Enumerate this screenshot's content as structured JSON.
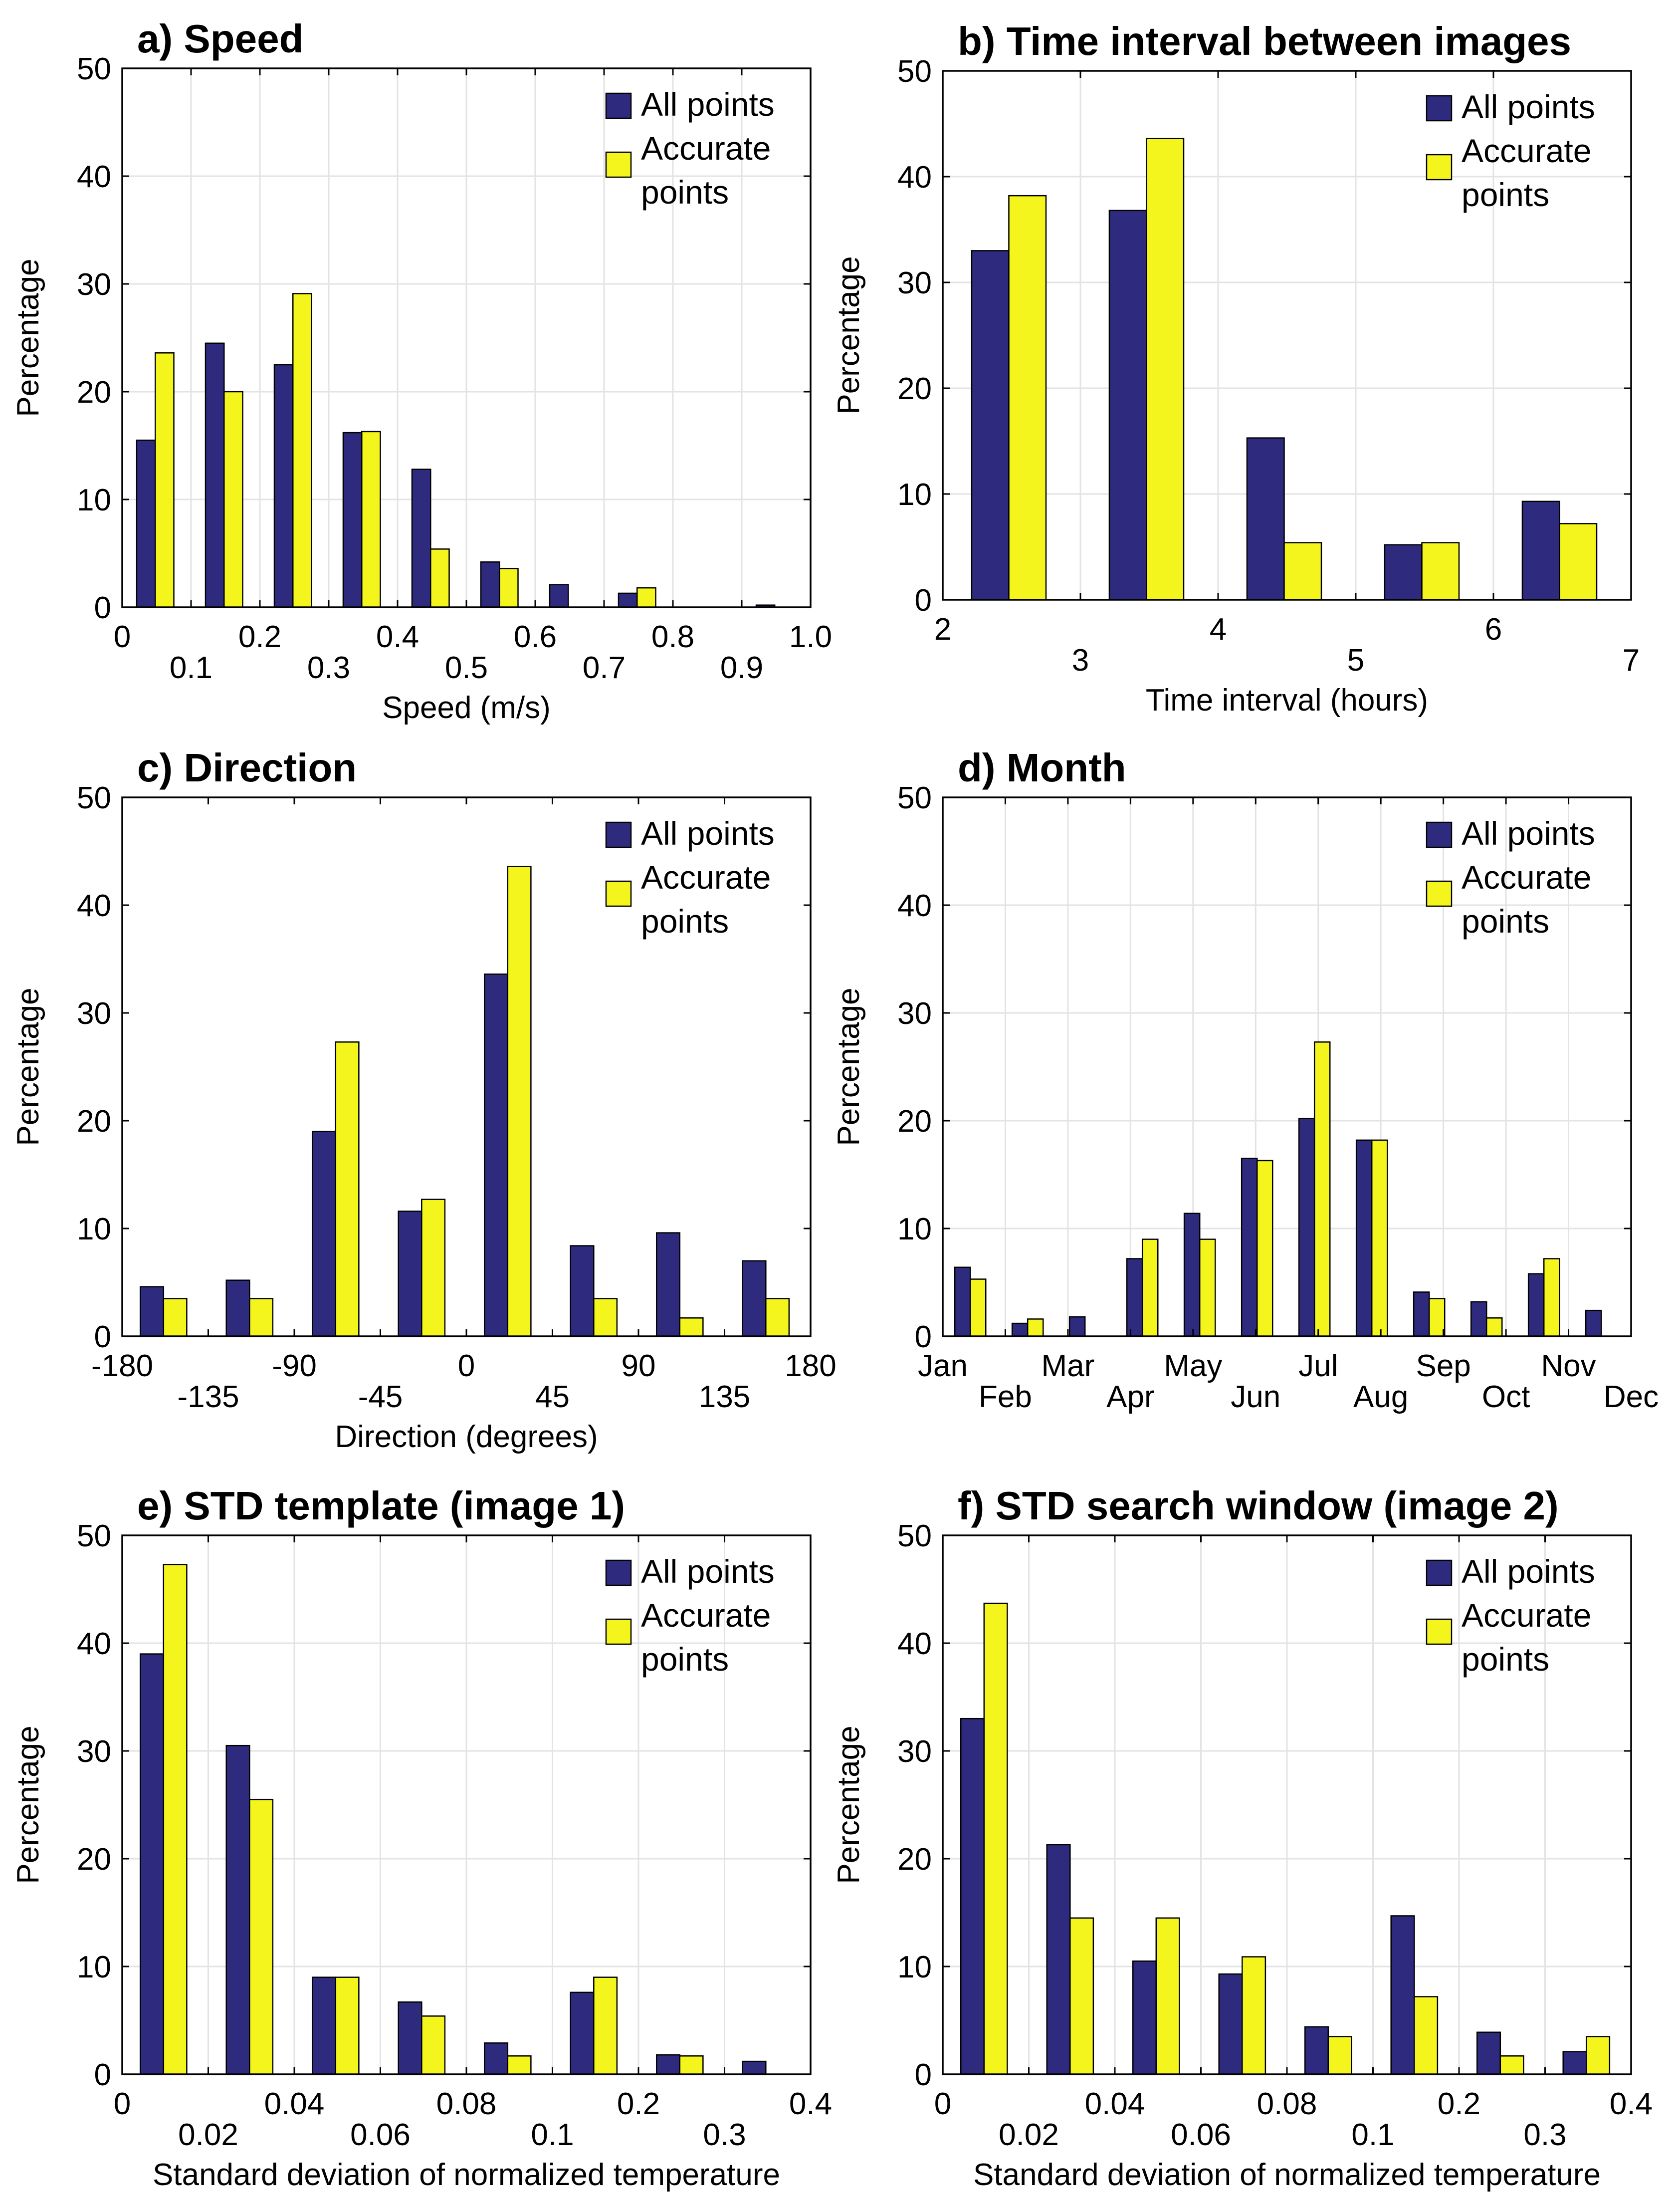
{
  "figure": {
    "colors": {
      "all_points": "#2e2a7e",
      "accurate_points": "#f5f51e",
      "grid": "#e3e3e3",
      "axis": "#000000"
    },
    "legend": {
      "all_points": "All points",
      "accurate_line1": "Accurate",
      "accurate_line2": "points"
    }
  },
  "chart_data": [
    {
      "id": "a",
      "type": "bar",
      "title": "a) Speed",
      "xlabel": "Speed (m/s)",
      "ylabel": "Percentage",
      "ylim": [
        0,
        50
      ],
      "yticks": [
        0,
        10,
        20,
        30,
        40,
        50
      ],
      "grid": true,
      "legend_position": "top-right",
      "x_tick_labels": [
        "0",
        "0.1",
        "0.2",
        "0.3",
        "0.4",
        "0.5",
        "0.6",
        "0.7",
        "0.8",
        "0.9",
        "1.0"
      ],
      "categories": [
        "0-0.1",
        "0.1-0.2",
        "0.2-0.3",
        "0.3-0.4",
        "0.4-0.5",
        "0.5-0.6",
        "0.6-0.7",
        "0.7-0.8",
        "0.8-0.9",
        "0.9-1.0"
      ],
      "series": [
        {
          "name": "All points",
          "values": [
            15.5,
            24.5,
            22.5,
            16.2,
            12.8,
            4.2,
            2.1,
            1.3,
            0,
            0.2
          ]
        },
        {
          "name": "Accurate points",
          "values": [
            23.6,
            20.0,
            29.1,
            16.3,
            5.4,
            3.6,
            0,
            1.8,
            0,
            0
          ]
        }
      ]
    },
    {
      "id": "b",
      "type": "bar",
      "title": "b) Time interval between images",
      "xlabel": "Time interval (hours)",
      "ylabel": "Percentage",
      "ylim": [
        0,
        50
      ],
      "yticks": [
        0,
        10,
        20,
        30,
        40,
        50
      ],
      "grid": true,
      "legend_position": "top-right",
      "x_tick_labels": [
        "2",
        "3",
        "4",
        "5",
        "6",
        "7"
      ],
      "categories": [
        "2-3",
        "3-4",
        "4-5",
        "5-6",
        "6-7"
      ],
      "series": [
        {
          "name": "All points",
          "values": [
            33.0,
            36.8,
            15.3,
            5.2,
            9.3
          ]
        },
        {
          "name": "Accurate points",
          "values": [
            38.2,
            43.6,
            5.4,
            5.4,
            7.2
          ]
        }
      ]
    },
    {
      "id": "c",
      "type": "bar",
      "title": "c) Direction",
      "xlabel": "Direction (degrees)",
      "ylabel": "Percentage",
      "ylim": [
        0,
        50
      ],
      "yticks": [
        0,
        10,
        20,
        30,
        40,
        50
      ],
      "grid": false,
      "legend_position": "top-right",
      "x_tick_labels": [
        "-180",
        "-135",
        "-90",
        "-45",
        "0",
        "45",
        "90",
        "135",
        "180"
      ],
      "categories": [
        "-180 to -135",
        "-135 to -90",
        "-90 to -45",
        "-45 to 0",
        "0 to 45",
        "45 to 90",
        "90 to 135",
        "135 to 180"
      ],
      "series": [
        {
          "name": "All points",
          "values": [
            4.6,
            5.2,
            19.0,
            11.6,
            33.6,
            8.4,
            9.6,
            7.0
          ]
        },
        {
          "name": "Accurate points",
          "values": [
            3.5,
            3.5,
            27.3,
            12.7,
            43.6,
            3.5,
            1.7,
            3.5
          ]
        }
      ]
    },
    {
      "id": "d",
      "type": "bar",
      "title": "d) Month",
      "xlabel": "",
      "ylabel": "Percentage",
      "ylim": [
        0,
        50
      ],
      "yticks": [
        0,
        10,
        20,
        30,
        40,
        50
      ],
      "grid": true,
      "legend_position": "top-right",
      "x_tick_labels": [
        "Jan",
        "Feb",
        "Mar",
        "Apr",
        "May",
        "Jun",
        "Jul",
        "Aug",
        "Sep",
        "Oct",
        "Nov",
        "Dec"
      ],
      "categories": [
        "Jan",
        "Feb",
        "Mar",
        "Apr",
        "May",
        "Jun",
        "Jul",
        "Aug",
        "Sep",
        "Oct",
        "Nov",
        "Dec"
      ],
      "series": [
        {
          "name": "All points",
          "values": [
            6.4,
            1.2,
            1.8,
            7.2,
            11.4,
            16.5,
            20.2,
            18.2,
            4.1,
            3.2,
            5.8,
            2.4
          ]
        },
        {
          "name": "Accurate points",
          "values": [
            5.3,
            1.6,
            0,
            9.0,
            9.0,
            16.3,
            27.3,
            18.2,
            3.5,
            1.7,
            7.2,
            0
          ]
        }
      ]
    },
    {
      "id": "e",
      "type": "bar",
      "title": "e) STD template (image 1)",
      "xlabel": "Standard deviation of normalized temperature",
      "ylabel": "Percentage",
      "ylim": [
        0,
        50
      ],
      "yticks": [
        0,
        10,
        20,
        30,
        40,
        50
      ],
      "grid": true,
      "legend_position": "top-right",
      "x_tick_labels": [
        "0",
        "0.02",
        "0.04",
        "0.06",
        "0.08",
        "0.1",
        "0.2",
        "0.3",
        "0.4"
      ],
      "categories": [
        "0-0.02",
        "0.02-0.04",
        "0.04-0.06",
        "0.06-0.08",
        "0.08-0.1",
        "0.1-0.2",
        "0.2-0.3",
        "0.3-0.4"
      ],
      "series": [
        {
          "name": "All points",
          "values": [
            39.0,
            30.5,
            9.0,
            6.7,
            2.9,
            7.6,
            1.8,
            1.2
          ]
        },
        {
          "name": "Accurate points",
          "values": [
            47.3,
            25.5,
            9.0,
            5.4,
            1.7,
            9.0,
            1.7,
            0
          ]
        }
      ]
    },
    {
      "id": "f",
      "type": "bar",
      "title": "f) STD search window (image 2)",
      "xlabel": "Standard deviation of normalized temperature",
      "ylabel": "Percentage",
      "ylim": [
        0,
        50
      ],
      "yticks": [
        0,
        10,
        20,
        30,
        40,
        50
      ],
      "grid": true,
      "legend_position": "top-right",
      "x_tick_labels": [
        "0",
        "0.02",
        "0.04",
        "0.06",
        "0.08",
        "0.1",
        "0.2",
        "0.3",
        "0.4"
      ],
      "categories": [
        "0-0.02",
        "0.02-0.04",
        "0.04-0.06",
        "0.06-0.08",
        "0.08-0.1",
        "0.1-0.2",
        "0.2-0.3",
        "0.3-0.4"
      ],
      "series": [
        {
          "name": "All points",
          "values": [
            33.0,
            21.3,
            10.5,
            9.3,
            4.4,
            14.7,
            3.9,
            2.1
          ]
        },
        {
          "name": "Accurate points",
          "values": [
            43.7,
            14.5,
            14.5,
            10.9,
            3.5,
            7.2,
            1.7,
            3.5
          ]
        }
      ]
    }
  ]
}
